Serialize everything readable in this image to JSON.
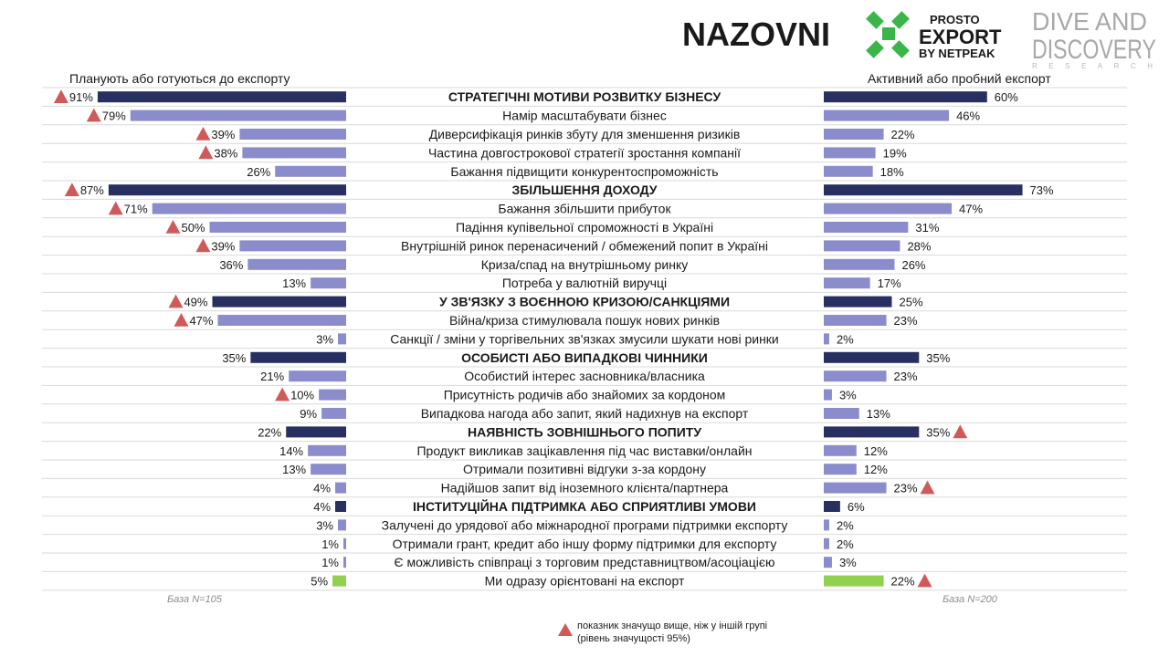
{
  "logos": {
    "nazovni": "NAZOVNI",
    "prosto_export": {
      "top": "PROSTO",
      "main": "EXPORT",
      "sub": "BY NETPEAK"
    },
    "dive": {
      "line1": "DIVE AND",
      "line2": "DISCOVERY",
      "line3": "RESEARCH"
    }
  },
  "chart_data": {
    "type": "bar",
    "series": [
      {
        "name": "Планують або готуються до експорту",
        "base": "База N=105"
      },
      {
        "name": "Активний або пробний експорт",
        "base": "База N=200"
      }
    ],
    "legend_note": [
      "показник значущо вище, ніж у іншій групі",
      "(рівень значущості 95%)"
    ],
    "rows": [
      {
        "label": "СТРАТЕГІЧНІ МОТИВИ РОЗВИТКУ БІЗНЕСУ",
        "left": 91,
        "right": 60,
        "kind": "header",
        "left_sig": true,
        "right_sig": false
      },
      {
        "label": "Намір масштабувати бізнес",
        "left": 79,
        "right": 46,
        "kind": "item",
        "left_sig": true,
        "right_sig": false
      },
      {
        "label": "Диверсифікація ринків збуту для зменшення ризиків",
        "left": 39,
        "right": 22,
        "kind": "item",
        "left_sig": true,
        "right_sig": false
      },
      {
        "label": "Частина довгострокової стратегії зростання компанії",
        "left": 38,
        "right": 19,
        "kind": "item",
        "left_sig": true,
        "right_sig": false
      },
      {
        "label": "Бажання підвищити конкурентоспроможність",
        "left": 26,
        "right": 18,
        "kind": "item",
        "left_sig": false,
        "right_sig": false
      },
      {
        "label": "ЗБІЛЬШЕННЯ ДОХОДУ",
        "left": 87,
        "right": 73,
        "kind": "header",
        "left_sig": true,
        "right_sig": false
      },
      {
        "label": "Бажання збільшити прибуток",
        "left": 71,
        "right": 47,
        "kind": "item",
        "left_sig": true,
        "right_sig": false
      },
      {
        "label": "Падіння купівельної спроможності в Україні",
        "left": 50,
        "right": 31,
        "kind": "item",
        "left_sig": true,
        "right_sig": false
      },
      {
        "label": "Внутрішній ринок перенасичений / обмежений попит в Україні",
        "left": 39,
        "right": 28,
        "kind": "item",
        "left_sig": true,
        "right_sig": false
      },
      {
        "label": "Криза/спад на внутрішньому ринку",
        "left": 36,
        "right": 26,
        "kind": "item",
        "left_sig": false,
        "right_sig": false
      },
      {
        "label": "Потреба у валютній виручці",
        "left": 13,
        "right": 17,
        "kind": "item",
        "left_sig": false,
        "right_sig": false
      },
      {
        "label": "У ЗВ'ЯЗКУ З ВОЄННОЮ КРИЗОЮ/САНКЦІЯМИ",
        "left": 49,
        "right": 25,
        "kind": "header",
        "left_sig": true,
        "right_sig": false
      },
      {
        "label": "Війна/криза стимулювала пошук нових ринків",
        "left": 47,
        "right": 23,
        "kind": "item",
        "left_sig": true,
        "right_sig": false
      },
      {
        "label": "Санкції / зміни у торгівельних зв'язках змусили шукати нові ринки",
        "left": 3,
        "right": 2,
        "kind": "item",
        "left_sig": false,
        "right_sig": false
      },
      {
        "label": "ОСОБИСТІ АБО ВИПАДКОВІ ЧИННИКИ",
        "left": 35,
        "right": 35,
        "kind": "header",
        "left_sig": false,
        "right_sig": false
      },
      {
        "label": "Особистий інтерес засновника/власника",
        "left": 21,
        "right": 23,
        "kind": "item",
        "left_sig": false,
        "right_sig": false
      },
      {
        "label": "Присутність родичів або знайомих за кордоном",
        "left": 10,
        "right": 3,
        "kind": "item",
        "left_sig": true,
        "right_sig": false
      },
      {
        "label": "Випадкова нагода або запит, який надихнув на експорт",
        "left": 9,
        "right": 13,
        "kind": "item",
        "left_sig": false,
        "right_sig": false
      },
      {
        "label": "НАЯВНІСТЬ ЗОВНІШНЬОГО ПОПИТУ",
        "left": 22,
        "right": 35,
        "kind": "header",
        "left_sig": false,
        "right_sig": true
      },
      {
        "label": "Продукт викликав зацікавлення під час виставки/онлайн",
        "left": 14,
        "right": 12,
        "kind": "item",
        "left_sig": false,
        "right_sig": false
      },
      {
        "label": "Отримали позитивні відгуки з-за кордону",
        "left": 13,
        "right": 12,
        "kind": "item",
        "left_sig": false,
        "right_sig": false
      },
      {
        "label": "Надійшов запит від іноземного клієнта/партнера",
        "left": 4,
        "right": 23,
        "kind": "item",
        "left_sig": false,
        "right_sig": true
      },
      {
        "label": "ІНСТИТУЦІЙНА ПІДТРИМКА АБО СПРИЯТЛИВІ УМОВИ",
        "left": 4,
        "right": 6,
        "kind": "header",
        "left_sig": false,
        "right_sig": false
      },
      {
        "label": "Залучені до урядової або міжнародної програми підтримки експорту",
        "left": 3,
        "right": 2,
        "kind": "item",
        "left_sig": false,
        "right_sig": false
      },
      {
        "label": "Отримали грант, кредит або іншу форму підтримки для експорту",
        "left": 1,
        "right": 2,
        "kind": "item",
        "left_sig": false,
        "right_sig": false
      },
      {
        "label": "Є можливість співпраці з торговим представництвом/асоціацією",
        "left": 1,
        "right": 3,
        "kind": "item",
        "left_sig": false,
        "right_sig": false
      },
      {
        "label": "Ми одразу орієнтовані на експорт",
        "left": 5,
        "right": 22,
        "kind": "special",
        "left_sig": false,
        "right_sig": true
      }
    ],
    "colors": {
      "header": "#283061",
      "item": "#8b8ccc",
      "special": "#92d050",
      "sig": "#d05a5a",
      "grid": "#d9d9d9"
    },
    "value_suffix": "%"
  }
}
